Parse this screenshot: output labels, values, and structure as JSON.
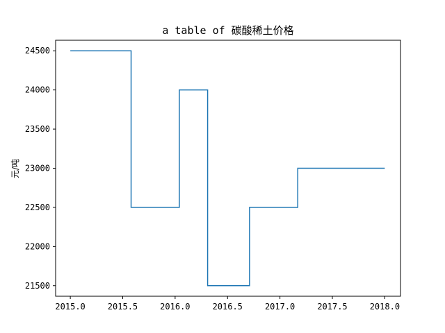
{
  "chart_data": {
    "type": "line",
    "drawstyle": "steps-post",
    "title": "a table of 碳酸稀土价格",
    "xlabel": "",
    "ylabel": "元/吨",
    "xlim": [
      2014.86,
      2018.15
    ],
    "ylim": [
      21365,
      24635
    ],
    "xticks": [
      2015.0,
      2015.5,
      2016.0,
      2016.5,
      2017.0,
      2017.5,
      2018.0
    ],
    "xtick_labels": [
      "2015.0",
      "2015.5",
      "2016.0",
      "2016.5",
      "2017.0",
      "2017.5",
      "2018.0"
    ],
    "yticks": [
      21500,
      22000,
      22500,
      23000,
      23500,
      24000,
      24500
    ],
    "ytick_labels": [
      "21500",
      "22000",
      "22500",
      "23000",
      "23500",
      "24000",
      "24500"
    ],
    "grid": false,
    "legend": "none",
    "series": [
      {
        "color": "#1f77b4",
        "x": [
          2015.0,
          2015.58,
          2016.04,
          2016.31,
          2016.71,
          2017.17,
          2018.0
        ],
        "y": [
          24500,
          22500,
          24000,
          21500,
          22500,
          23000,
          23000
        ]
      }
    ]
  }
}
